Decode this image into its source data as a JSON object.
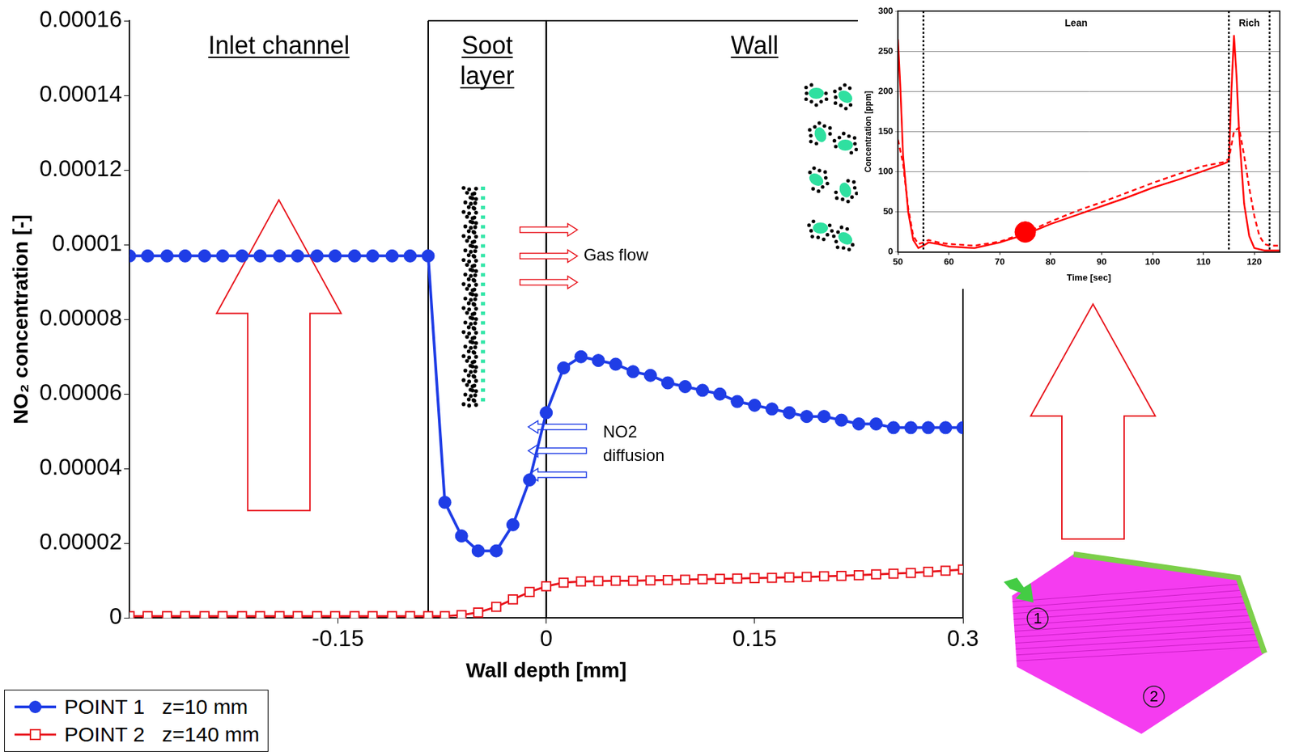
{
  "chart_data": [
    {
      "type": "line",
      "x_label": "Wall depth [mm]",
      "y_label": "NO₂ concentration [-]",
      "xlim": [
        -0.3,
        0.3
      ],
      "xticks": [
        -0.15,
        0,
        0.15,
        0.3
      ],
      "ylim": [
        0,
        0.00016
      ],
      "yticks": [
        0,
        2e-05,
        4e-05,
        6e-05,
        8e-05,
        0.0001,
        0.00012,
        0.00014,
        0.00016
      ],
      "grid": false,
      "legend": "lower left",
      "x": [
        -0.3,
        -0.287,
        -0.273,
        -0.26,
        -0.246,
        -0.233,
        -0.219,
        -0.206,
        -0.192,
        -0.179,
        -0.165,
        -0.152,
        -0.138,
        -0.125,
        -0.111,
        -0.098,
        -0.085,
        -0.073,
        -0.061,
        -0.049,
        -0.036,
        -0.024,
        -0.012,
        0,
        0.0125,
        0.025,
        0.0375,
        0.05,
        0.0625,
        0.075,
        0.0875,
        0.1,
        0.1125,
        0.125,
        0.1375,
        0.15,
        0.1625,
        0.175,
        0.1875,
        0.2,
        0.2125,
        0.225,
        0.2375,
        0.25,
        0.2625,
        0.275,
        0.2875,
        0.3
      ],
      "series": [
        {
          "name": "POINT 1   z=10 mm",
          "color": "#1f3de6",
          "marker": "circle",
          "line_style": "solid",
          "values": [
            9.7e-05,
            9.7e-05,
            9.7e-05,
            9.7e-05,
            9.7e-05,
            9.7e-05,
            9.7e-05,
            9.7e-05,
            9.7e-05,
            9.7e-05,
            9.7e-05,
            9.7e-05,
            9.7e-05,
            9.7e-05,
            9.7e-05,
            9.7e-05,
            9.7e-05,
            3.1e-05,
            2.2e-05,
            1.8e-05,
            1.8e-05,
            2.5e-05,
            3.7e-05,
            5.5e-05,
            6.7e-05,
            7e-05,
            6.9e-05,
            6.8e-05,
            6.6e-05,
            6.5e-05,
            6.3e-05,
            6.2e-05,
            6.1e-05,
            6e-05,
            5.8e-05,
            5.7e-05,
            5.6e-05,
            5.5e-05,
            5.4e-05,
            5.4e-05,
            5.3e-05,
            5.2e-05,
            5.2e-05,
            5.1e-05,
            5.1e-05,
            5.1e-05,
            5.1e-05,
            5.1e-05
          ]
        },
        {
          "name": "POINT 2   z=140 mm",
          "color": "#e8141c",
          "marker": "open-square",
          "line_style": "solid",
          "values": [
            5e-07,
            5e-07,
            5e-07,
            5e-07,
            5e-07,
            5e-07,
            5e-07,
            5e-07,
            5e-07,
            5e-07,
            5e-07,
            5e-07,
            5e-07,
            5e-07,
            5e-07,
            5e-07,
            5e-07,
            5e-07,
            8e-07,
            1.5e-06,
            3e-06,
            5e-06,
            7e-06,
            8.5e-06,
            9.5e-06,
            9.8e-06,
            9.9e-06,
            1e-05,
            1e-05,
            1.01e-05,
            1.02e-05,
            1.03e-05,
            1.04e-05,
            1.05e-05,
            1.06e-05,
            1.07e-05,
            1.08e-05,
            1.09e-05,
            1.1e-05,
            1.12e-05,
            1.13e-05,
            1.15e-05,
            1.17e-05,
            1.19e-05,
            1.21e-05,
            1.24e-05,
            1.27e-05,
            1.3e-05
          ]
        }
      ],
      "regions": [
        {
          "label": "Inlet channel",
          "from": -0.3,
          "to": -0.085
        },
        {
          "label": "Soot layer",
          "from": -0.085,
          "to": 0
        },
        {
          "label": "Wall",
          "from": 0,
          "to": 0.3
        }
      ],
      "annotations": [
        "Gas flow",
        "NO2 diffusion"
      ],
      "point_labels": [
        "1",
        "2"
      ]
    },
    {
      "type": "line",
      "x_label": "Time [sec]",
      "y_label": "Concentration [ppm]",
      "xlim": [
        50,
        125
      ],
      "xticks": [
        50,
        60,
        70,
        80,
        90,
        100,
        110,
        120
      ],
      "ylim": [
        0,
        300
      ],
      "yticks": [
        0,
        50,
        100,
        150,
        200,
        250,
        300
      ],
      "grid": true,
      "phases": [
        {
          "label": "Lean",
          "from": 55,
          "to": 115
        },
        {
          "label": "Rich",
          "from": 115,
          "to": 123
        }
      ],
      "series": [
        {
          "color": "#ff0000",
          "line_style": "solid",
          "x": [
            50,
            50.5,
            51,
            52,
            53,
            54,
            55,
            56,
            58,
            60,
            65,
            70,
            75,
            80,
            85,
            90,
            95,
            100,
            105,
            110,
            114,
            115,
            115.5,
            116,
            116.5,
            117,
            118,
            119,
            120,
            122,
            125
          ],
          "values": [
            265,
            200,
            120,
            50,
            15,
            5,
            8,
            12,
            10,
            7,
            5,
            12,
            22,
            35,
            46,
            57,
            68,
            80,
            90,
            101,
            110,
            113,
            200,
            270,
            220,
            150,
            60,
            20,
            5,
            2,
            2
          ]
        },
        {
          "color": "#ff0000",
          "line_style": "dashed",
          "x": [
            50,
            51,
            52,
            53,
            54,
            55,
            56,
            58,
            60,
            65,
            70,
            75,
            80,
            85,
            90,
            95,
            100,
            105,
            110,
            114,
            115,
            116,
            117,
            118,
            119,
            120,
            121,
            122,
            123,
            125
          ],
          "values": [
            140,
            110,
            55,
            20,
            10,
            12,
            15,
            12,
            10,
            8,
            13,
            24,
            38,
            51,
            62,
            74,
            86,
            97,
            107,
            112,
            116,
            150,
            155,
            120,
            80,
            45,
            20,
            10,
            8,
            8
          ]
        }
      ],
      "highlight": {
        "x": 75,
        "y": 25,
        "color": "#ff0000"
      }
    }
  ]
}
